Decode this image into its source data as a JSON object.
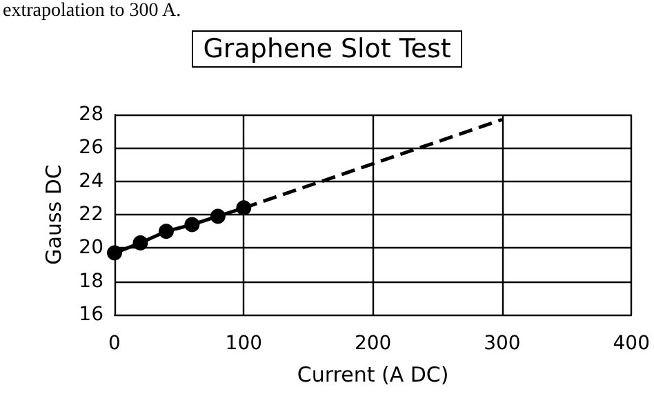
{
  "chart_data": {
    "type": "line",
    "title": "Graphene Slot Test",
    "xlabel": "Current (A DC)",
    "ylabel": "Gauss DC",
    "annotations": [
      "extrapolation to 300 A."
    ],
    "xlim": [
      0,
      400
    ],
    "xticks": [
      0,
      100,
      200,
      300,
      400
    ],
    "ylim": [
      16,
      28
    ],
    "yticks": [
      16,
      18,
      20,
      22,
      24,
      26,
      28
    ],
    "grid": true,
    "series": [
      {
        "color": "#000000",
        "x": [
          0,
          20,
          40,
          60,
          80,
          100
        ],
        "values": [
          19.7,
          20.3,
          21.0,
          21.4,
          21.9,
          22.4
        ],
        "marker": "circle",
        "line_style": "solid"
      },
      {
        "color": "#000000",
        "x": [
          100,
          300
        ],
        "values": [
          22.4,
          27.7
        ],
        "marker": "none",
        "line_style": "dashed"
      }
    ]
  }
}
